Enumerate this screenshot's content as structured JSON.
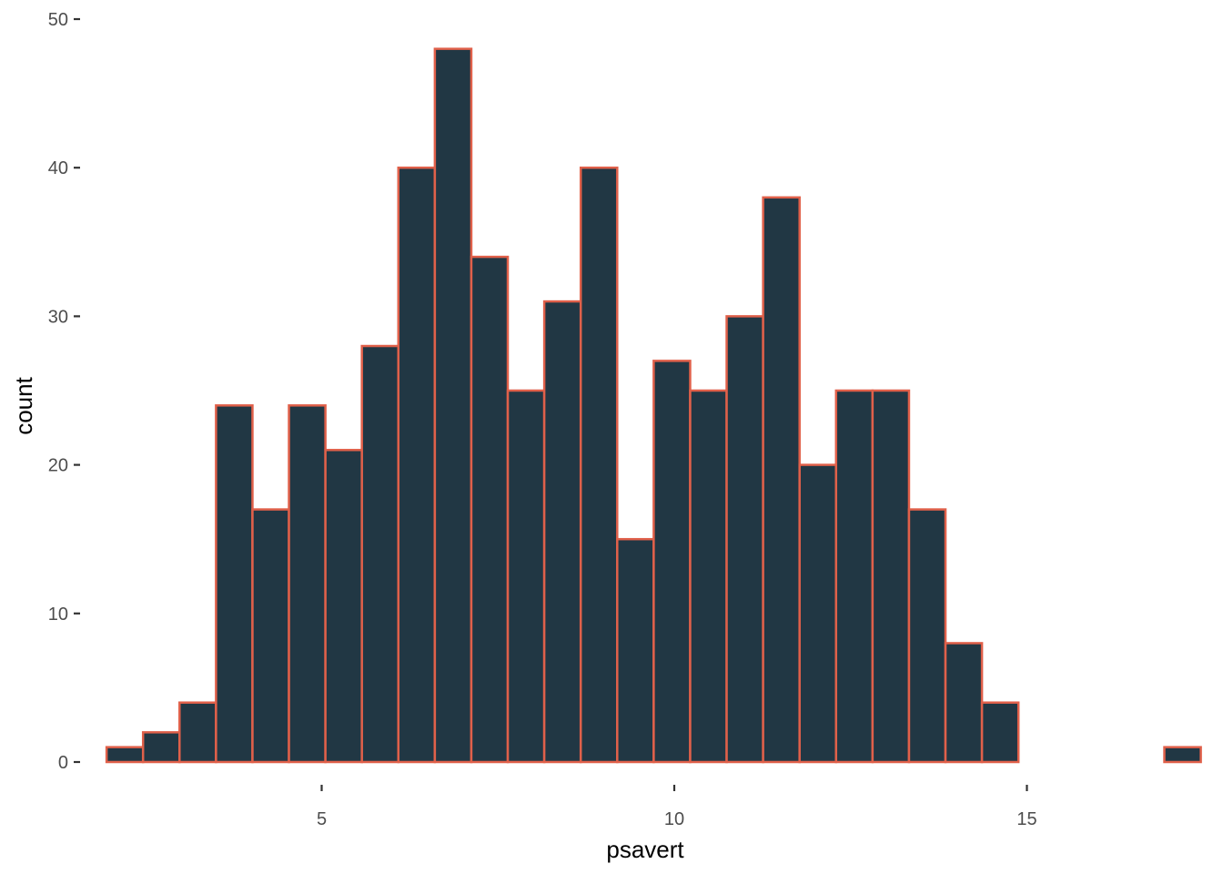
{
  "chart_data": {
    "type": "bar",
    "xlabel": "psavert",
    "ylabel": "count",
    "xlim": [
      1.6,
      17.6
    ],
    "ylim": [
      -2.4,
      50.5
    ],
    "x_ticks": [
      5,
      10,
      15
    ],
    "y_ticks": [
      0,
      10,
      20,
      30,
      40,
      50
    ],
    "bin_width": 0.5172,
    "first_bin_left": 1.95,
    "values": [
      1,
      2,
      4,
      24,
      17,
      24,
      21,
      28,
      40,
      48,
      34,
      25,
      31,
      40,
      15,
      27,
      25,
      30,
      38,
      20,
      25,
      25,
      17,
      8,
      4,
      0,
      0,
      0,
      0,
      1
    ],
    "grid": false,
    "legend": "none",
    "colors": {
      "fill": "#213744",
      "outline": "#e0604a",
      "tick": "#333333",
      "tick_label": "#4d4d4d"
    }
  }
}
